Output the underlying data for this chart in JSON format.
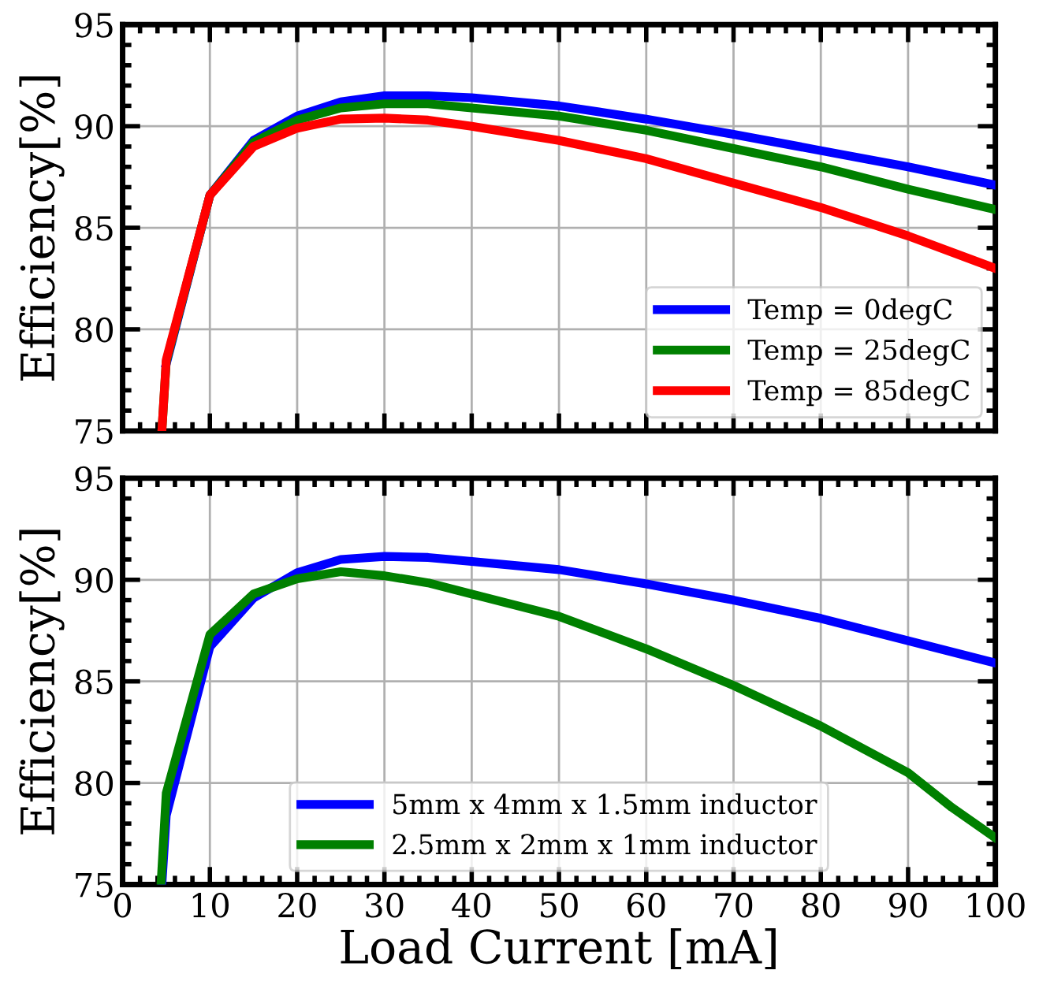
{
  "chart_data": [
    {
      "type": "line",
      "ylabel": "Efficiency[%]",
      "xlim": [
        0,
        100
      ],
      "ylim": [
        75,
        95
      ],
      "xticks": [
        0,
        10,
        20,
        30,
        40,
        50,
        60,
        70,
        80,
        90,
        100
      ],
      "yticks": [
        75,
        80,
        85,
        90,
        95
      ],
      "tick_labels": "y",
      "grid": true,
      "legend": "lower right",
      "x": [
        4.5,
        5,
        10,
        15,
        20,
        25,
        30,
        35,
        40,
        50,
        60,
        70,
        80,
        90,
        100
      ],
      "series": [
        {
          "name": "Temp = 0degC",
          "color": "#0000ff",
          "values": [
            null,
            78.3,
            86.6,
            89.3,
            90.5,
            91.2,
            91.5,
            91.5,
            91.4,
            91.0,
            90.35,
            89.6,
            88.8,
            88.0,
            87.1
          ]
        },
        {
          "name": "Temp = 25degC",
          "color": "#008000",
          "values": [
            75,
            78.4,
            86.6,
            89.2,
            90.3,
            90.9,
            91.1,
            91.1,
            90.9,
            90.5,
            89.8,
            88.9,
            88.0,
            86.9,
            85.9
          ]
        },
        {
          "name": "Temp = 85degC",
          "color": "#ff0000",
          "values": [
            75,
            78.5,
            86.6,
            89.0,
            89.9,
            90.35,
            90.4,
            90.3,
            90.0,
            89.3,
            88.4,
            87.2,
            86.0,
            84.6,
            83.0
          ]
        }
      ]
    },
    {
      "type": "line",
      "xlabel": "Load Current [mA]",
      "ylabel": "Efficiency[%]",
      "xlim": [
        0,
        100
      ],
      "ylim": [
        75,
        95
      ],
      "xticks": [
        0,
        10,
        20,
        30,
        40,
        50,
        60,
        70,
        80,
        90,
        100
      ],
      "yticks": [
        75,
        80,
        85,
        90,
        95
      ],
      "grid": true,
      "legend": "lower center",
      "series": [
        {
          "name": "5mm x 4mm x 1.5mm inductor",
          "color": "#0000ff",
          "x": [
            4.5,
            5,
            10,
            15,
            20,
            25,
            30,
            35,
            40,
            50,
            60,
            70,
            80,
            90,
            100
          ],
          "values": [
            75,
            78.4,
            86.7,
            89.1,
            90.35,
            91.0,
            91.15,
            91.1,
            90.9,
            90.5,
            89.8,
            89.0,
            88.1,
            87.0,
            85.9
          ]
        },
        {
          "name": "2.5mm x 2mm x 1mm inductor",
          "color": "#008000",
          "x": [
            4.4,
            5,
            10,
            15,
            20,
            25,
            30,
            35,
            40,
            50,
            60,
            70,
            80,
            90,
            95,
            100
          ],
          "values": [
            75,
            79.5,
            87.3,
            89.3,
            90.05,
            90.4,
            90.2,
            89.85,
            89.3,
            88.2,
            86.6,
            84.8,
            82.8,
            80.5,
            78.8,
            77.3
          ]
        }
      ]
    }
  ]
}
